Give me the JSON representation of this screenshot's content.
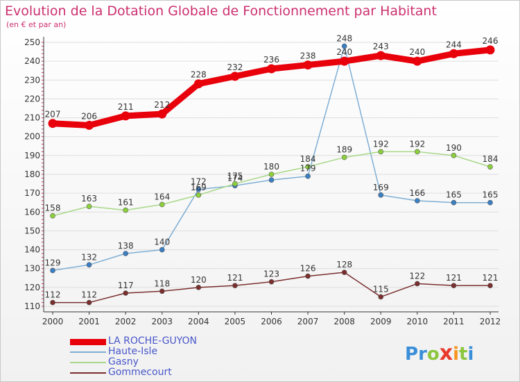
{
  "header": {
    "title": "Evolution de la Dotation Globale de Fonctionnement par Habitant",
    "subtitle": "(en € et par an)"
  },
  "colors": {
    "title": "#cc2f6f",
    "axis_text": "#333333",
    "grid": "#dddddd",
    "legend_text": "#4857c9"
  },
  "chart_data": {
    "type": "line",
    "title": "Evolution de la Dotation Globale de Fonctionnement par Habitant",
    "subtitle": "(en € et par an)",
    "x": [
      "2000",
      "2001",
      "2002",
      "2003",
      "2004",
      "2005",
      "2006",
      "2007",
      "2008",
      "2009",
      "2010",
      "2011",
      "2012"
    ],
    "ylim": [
      110,
      250
    ],
    "yticks": [
      110,
      120,
      130,
      140,
      150,
      160,
      170,
      180,
      190,
      200,
      210,
      220,
      230,
      240,
      250
    ],
    "grid": true,
    "legend_position": "bottom-left",
    "series": [
      {
        "name": "LA ROCHE-GUYON",
        "color": "#e8000b",
        "marker": "#e8000b",
        "thick": true,
        "values": [
          207,
          206,
          211,
          212,
          228,
          232,
          236,
          238,
          240,
          243,
          240,
          244,
          246
        ]
      },
      {
        "name": "Haute-Isle",
        "color": "#7eaed4",
        "marker": "#3a7fc4",
        "thick": false,
        "values": [
          129,
          132,
          138,
          140,
          172,
          174,
          177,
          179,
          248,
          169,
          166,
          165,
          165
        ],
        "labels": [
          "129",
          "132",
          "138",
          "140",
          "172",
          "174",
          "",
          "179",
          "248",
          "169",
          "166",
          "165",
          "165"
        ]
      },
      {
        "name": "Gasny",
        "color": "#a8d888",
        "marker": "#8cd03c",
        "thick": false,
        "values": [
          158,
          163,
          161,
          164,
          169,
          175,
          180,
          184,
          189,
          192,
          192,
          190,
          184
        ],
        "labels": [
          "158",
          "163",
          "161",
          "164",
          "169",
          "175",
          "180",
          "184",
          "189",
          "192",
          "192",
          "190",
          "184"
        ]
      },
      {
        "name": "Gommecourt",
        "color": "#7a2e2e",
        "marker": "#7a2e2e",
        "thick": false,
        "values": [
          112,
          112,
          117,
          118,
          120,
          121,
          123,
          126,
          128,
          115,
          122,
          121,
          121
        ]
      }
    ]
  },
  "legend": {
    "items": [
      "LA ROCHE-GUYON",
      "Haute-Isle",
      "Gasny",
      "Gommecourt"
    ]
  },
  "logo": {
    "letters": [
      "P",
      "r",
      "o",
      "x",
      "i",
      "t",
      "i"
    ],
    "colors": [
      "#3a8fd8",
      "#3a8fd8",
      "#8cc63f",
      "#e8392b",
      "#f7941d",
      "#8cc63f",
      "#3a8fd8"
    ]
  }
}
